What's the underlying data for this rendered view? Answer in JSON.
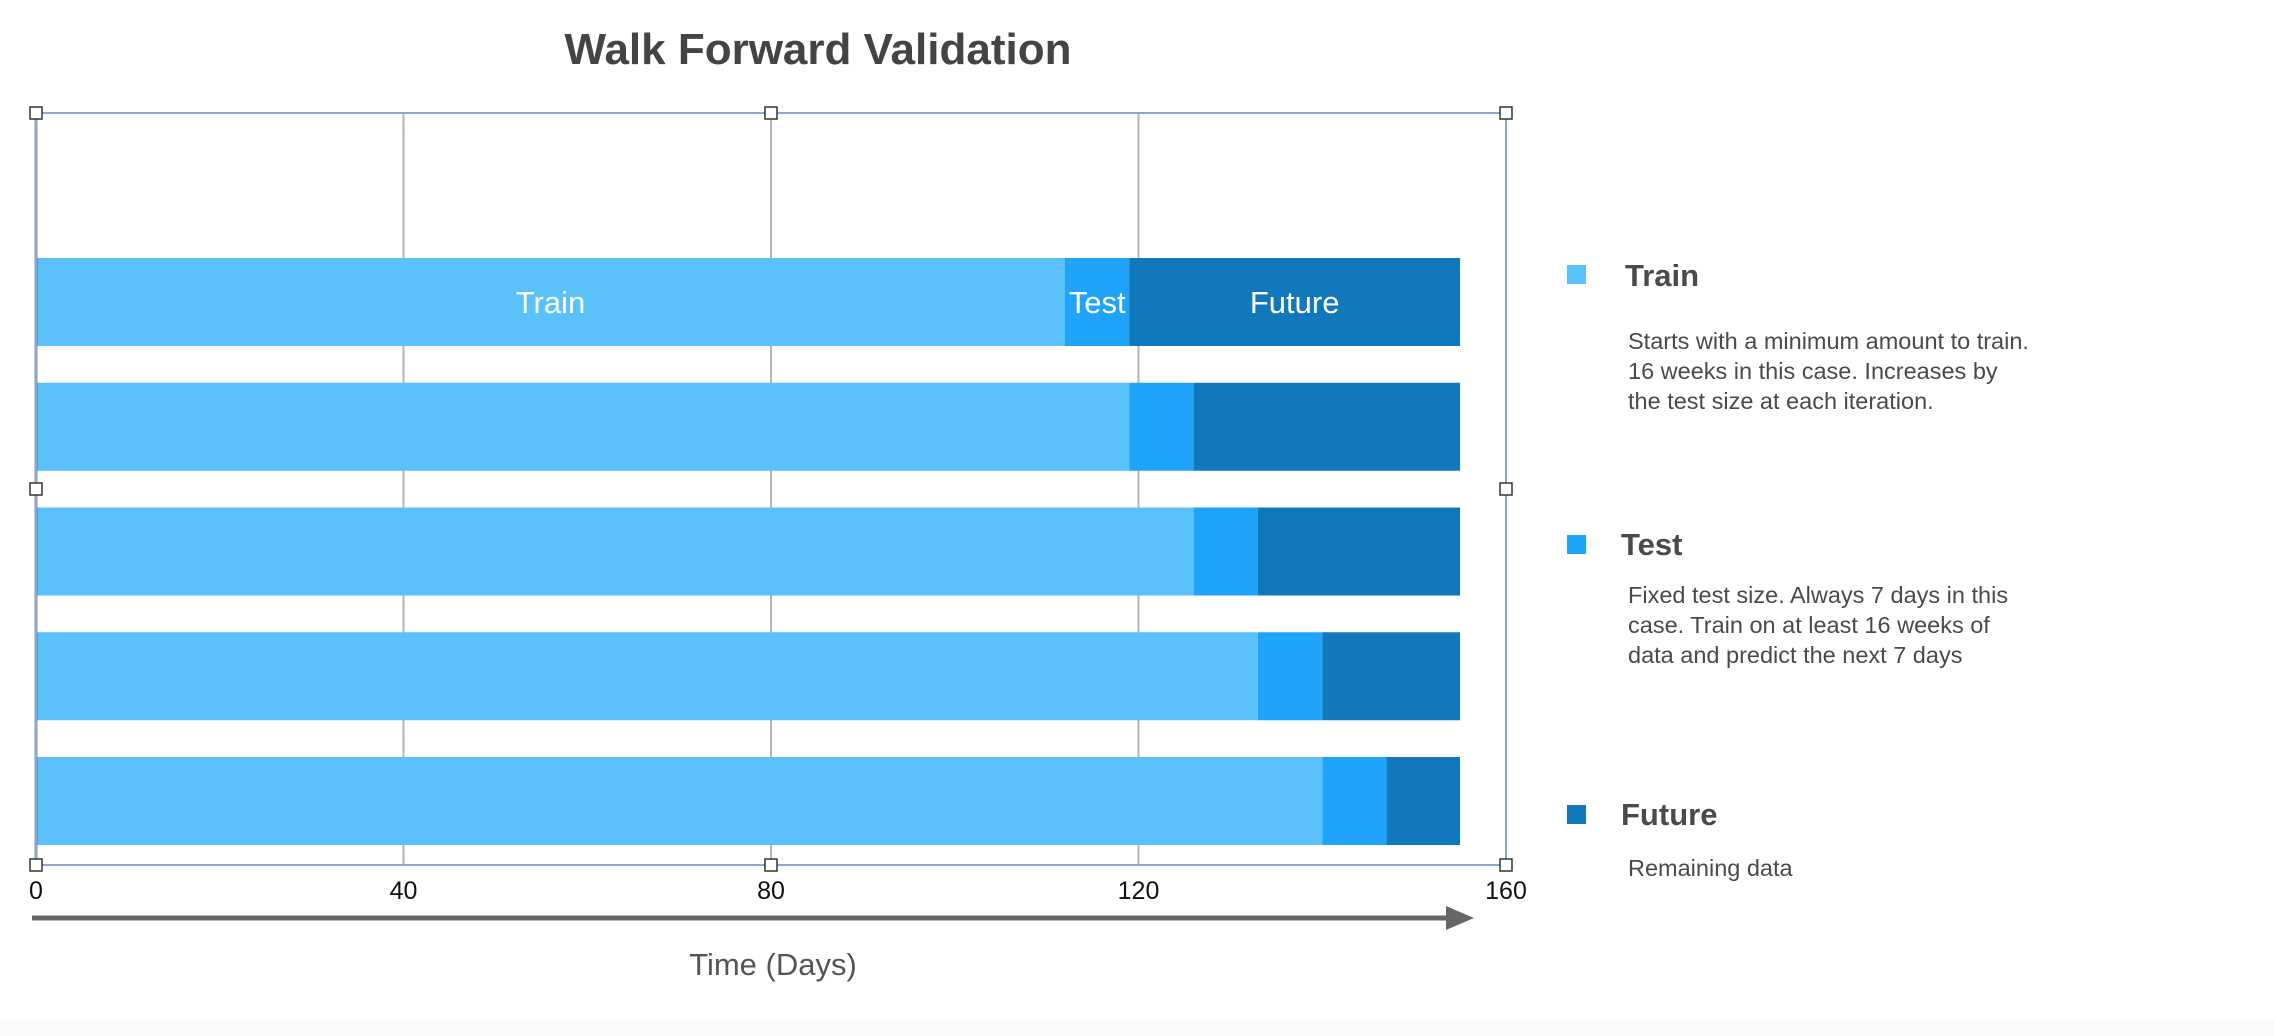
{
  "chart_data": {
    "type": "bar",
    "orientation": "horizontal",
    "stacked": true,
    "title": "Walk Forward Validation",
    "xlabel": "Time (Days)",
    "ylabel": "",
    "xlim": [
      0,
      160
    ],
    "x_ticks": [
      "0",
      "40",
      "80",
      "120",
      "160"
    ],
    "grid": true,
    "rows": 5,
    "series": [
      {
        "name": "Train",
        "color": "#5bc1fb",
        "values": [
          112,
          119,
          126,
          133,
          140
        ]
      },
      {
        "name": "Test",
        "color": "#1ea4fa",
        "values": [
          7,
          7,
          7,
          7,
          7
        ]
      },
      {
        "name": "Future",
        "color": "#1278bc",
        "values": [
          36,
          29,
          22,
          15,
          8
        ]
      }
    ],
    "segment_labels": [
      "Train",
      "Test",
      "Future"
    ]
  },
  "legend": {
    "placement": "right",
    "items": [
      {
        "name": "Train",
        "color": "#5bc1fb",
        "description": "Starts with a minimum amount to train.\n16 weeks in this case.  Increases by\nthe test size at each iteration."
      },
      {
        "name": "Test",
        "color": "#1ea4fa",
        "description": "Fixed test size.  Always 7 days in this\ncase.  Train on at least 16 weeks of\ndata and predict the next 7 days"
      },
      {
        "name": "Future",
        "color": "#1278bc",
        "description": "Remaining data"
      }
    ]
  },
  "colors": {
    "title_text": "#444444",
    "axis_text": "#111111",
    "gridline": "#b5b5b5",
    "selection_frame": "#8aa8d0",
    "arrow": "#666666"
  }
}
